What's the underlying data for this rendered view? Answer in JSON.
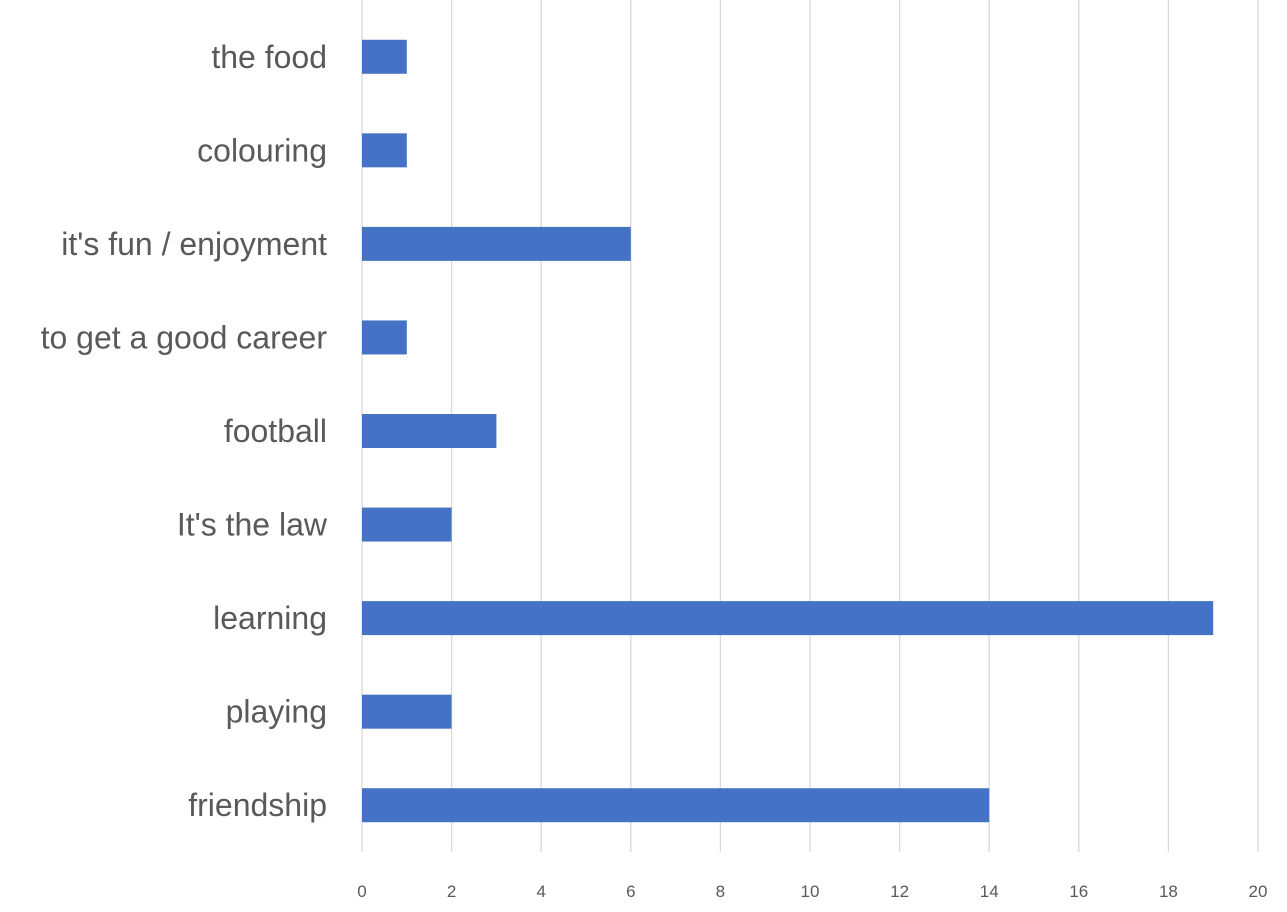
{
  "chart_data": {
    "type": "bar",
    "orientation": "horizontal",
    "categories": [
      "the food",
      "colouring",
      "it's fun / enjoyment",
      "to get a good career",
      "football",
      "It's the law",
      "learning",
      "playing",
      "friendship"
    ],
    "values": [
      1,
      1,
      6,
      1,
      3,
      2,
      19,
      2,
      14
    ],
    "xlim": [
      0,
      20
    ],
    "xticks": [
      "0",
      "2",
      "4",
      "6",
      "8",
      "10",
      "12",
      "14",
      "16",
      "18",
      "20"
    ],
    "grid": "vertical",
    "bar_color": "#4472c4"
  }
}
